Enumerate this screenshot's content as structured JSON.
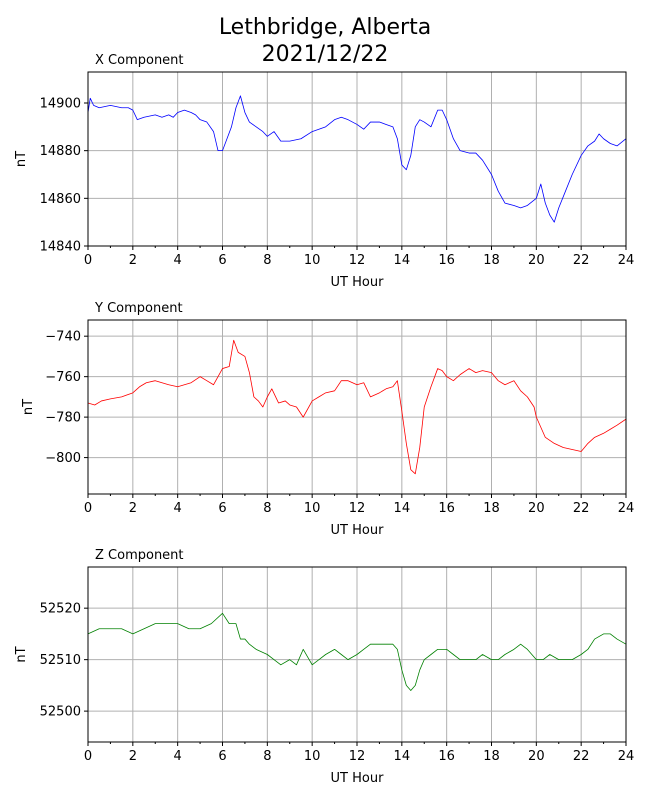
{
  "figure": {
    "title_line1": "Lethbridge, Alberta",
    "title_line2": "2021/12/22"
  },
  "chart_data": [
    {
      "type": "line",
      "panel_title": "X Component",
      "xlabel": "UT Hour",
      "ylabel": "nT",
      "xlim": [
        0,
        24
      ],
      "ylim": [
        14840,
        14913
      ],
      "xticks": [
        0,
        2,
        4,
        6,
        8,
        10,
        12,
        14,
        16,
        18,
        20,
        22,
        24
      ],
      "yticks": [
        14840,
        14860,
        14880,
        14900
      ],
      "grid": true,
      "color": "#0000ff",
      "series": [
        {
          "x": [
            0,
            0.1,
            0.25,
            0.5,
            1,
            1.5,
            1.8,
            2,
            2.2,
            2.5,
            3,
            3.3,
            3.6,
            3.8,
            4,
            4.3,
            4.6,
            4.8,
            5,
            5.3,
            5.6,
            5.8,
            6,
            6.2,
            6.4,
            6.6,
            6.8,
            7,
            7.2,
            7.5,
            7.8,
            8,
            8.3,
            8.6,
            9,
            9.5,
            10,
            10.3,
            10.6,
            11,
            11.3,
            11.6,
            12,
            12.3,
            12.6,
            13,
            13.3,
            13.6,
            13.8,
            14,
            14.2,
            14.4,
            14.6,
            14.8,
            15,
            15.3,
            15.6,
            15.8,
            16,
            16.3,
            16.6,
            17,
            17.3,
            17.6,
            18,
            18.3,
            18.6,
            19,
            19.3,
            19.6,
            20,
            20.2,
            20.4,
            20.6,
            20.8,
            21,
            21.3,
            21.6,
            22,
            22.3,
            22.6,
            22.8,
            23,
            23.3,
            23.6,
            24
          ],
          "y": [
            14896,
            14902,
            14899,
            14898,
            14899,
            14898,
            14898,
            14897,
            14893,
            14894,
            14895,
            14894,
            14895,
            14894,
            14896,
            14897,
            14896,
            14895,
            14893,
            14892,
            14888,
            14880,
            14880,
            14885,
            14890,
            14898,
            14903,
            14896,
            14892,
            14890,
            14888,
            14886,
            14888,
            14884,
            14884,
            14885,
            14888,
            14889,
            14890,
            14893,
            14894,
            14893,
            14891,
            14889,
            14892,
            14892,
            14891,
            14890,
            14885,
            14874,
            14872,
            14878,
            14890,
            14893,
            14892,
            14890,
            14897,
            14897,
            14893,
            14885,
            14880,
            14879,
            14879,
            14876,
            14870,
            14863,
            14858,
            14857,
            14856,
            14857,
            14860,
            14866,
            14858,
            14853,
            14850,
            14856,
            14863,
            14870,
            14878,
            14882,
            14884,
            14887,
            14885,
            14883,
            14882,
            14885
          ]
        }
      ]
    },
    {
      "type": "line",
      "panel_title": "Y Component",
      "xlabel": "UT Hour",
      "ylabel": "nT",
      "xlim": [
        0,
        24
      ],
      "ylim": [
        -818,
        -732
      ],
      "xticks": [
        0,
        2,
        4,
        6,
        8,
        10,
        12,
        14,
        16,
        18,
        20,
        22,
        24
      ],
      "yticks": [
        -800,
        -780,
        -760,
        -740
      ],
      "grid": true,
      "color": "#ff0000",
      "series": [
        {
          "x": [
            0,
            0.3,
            0.6,
            1,
            1.5,
            2,
            2.3,
            2.6,
            3,
            3.3,
            3.6,
            4,
            4.3,
            4.6,
            5,
            5.3,
            5.6,
            6,
            6.3,
            6.5,
            6.7,
            7,
            7.2,
            7.4,
            7.6,
            7.8,
            8,
            8.2,
            8.5,
            8.8,
            9,
            9.3,
            9.6,
            10,
            10.3,
            10.6,
            11,
            11.3,
            11.6,
            12,
            12.3,
            12.6,
            13,
            13.3,
            13.6,
            13.8,
            14,
            14.2,
            14.4,
            14.6,
            14.8,
            15,
            15.3,
            15.6,
            15.8,
            16,
            16.3,
            16.6,
            17,
            17.3,
            17.6,
            18,
            18.3,
            18.6,
            19,
            19.3,
            19.6,
            19.9,
            20,
            20.2,
            20.4,
            20.8,
            21.2,
            21.6,
            22,
            22.3,
            22.6,
            23,
            23.3,
            23.6,
            24
          ],
          "y": [
            -773,
            -774,
            -772,
            -771,
            -770,
            -768,
            -765,
            -763,
            -762,
            -763,
            -764,
            -765,
            -764,
            -763,
            -760,
            -762,
            -764,
            -756,
            -755,
            -742,
            -748,
            -750,
            -758,
            -770,
            -772,
            -775,
            -770,
            -766,
            -773,
            -772,
            -774,
            -775,
            -780,
            -772,
            -770,
            -768,
            -767,
            -762,
            -762,
            -764,
            -763,
            -770,
            -768,
            -766,
            -765,
            -762,
            -777,
            -793,
            -806,
            -808,
            -795,
            -775,
            -765,
            -756,
            -757,
            -760,
            -762,
            -759,
            -756,
            -758,
            -757,
            -758,
            -762,
            -764,
            -762,
            -767,
            -770,
            -775,
            -780,
            -785,
            -790,
            -793,
            -795,
            -796,
            -797,
            -793,
            -790,
            -788,
            -786,
            -784,
            -781
          ]
        }
      ]
    },
    {
      "type": "line",
      "panel_title": "Z Component",
      "xlabel": "UT Hour",
      "ylabel": "nT",
      "xlim": [
        0,
        24
      ],
      "ylim": [
        52494,
        52528
      ],
      "xticks": [
        0,
        2,
        4,
        6,
        8,
        10,
        12,
        14,
        16,
        18,
        20,
        22,
        24
      ],
      "yticks": [
        52500,
        52510,
        52520
      ],
      "grid": true,
      "color": "#008000",
      "series": [
        {
          "x": [
            0,
            0.5,
            1,
            1.5,
            2,
            2.5,
            3,
            3.5,
            4,
            4.5,
            5,
            5.5,
            6,
            6.3,
            6.6,
            6.8,
            7,
            7.2,
            7.5,
            8,
            8.3,
            8.6,
            9,
            9.3,
            9.6,
            10,
            10.3,
            10.6,
            11,
            11.3,
            11.6,
            12,
            12.3,
            12.6,
            13,
            13.3,
            13.6,
            13.8,
            14,
            14.2,
            14.4,
            14.6,
            14.8,
            15,
            15.3,
            15.6,
            16,
            16.3,
            16.6,
            17,
            17.3,
            17.6,
            18,
            18.3,
            18.6,
            19,
            19.3,
            19.6,
            20,
            20.3,
            20.6,
            21,
            21.3,
            21.6,
            22,
            22.3,
            22.6,
            23,
            23.3,
            23.6,
            24
          ],
          "y": [
            52515,
            52516,
            52516,
            52516,
            52515,
            52516,
            52517,
            52517,
            52517,
            52516,
            52516,
            52517,
            52519,
            52517,
            52517,
            52514,
            52514,
            52513,
            52512,
            52511,
            52510,
            52509,
            52510,
            52509,
            52512,
            52509,
            52510,
            52511,
            52512,
            52511,
            52510,
            52511,
            52512,
            52513,
            52513,
            52513,
            52513,
            52512,
            52508,
            52505,
            52504,
            52505,
            52508,
            52510,
            52511,
            52512,
            52512,
            52511,
            52510,
            52510,
            52510,
            52511,
            52510,
            52510,
            52511,
            52512,
            52513,
            52512,
            52510,
            52510,
            52511,
            52510,
            52510,
            52510,
            52511,
            52512,
            52514,
            52515,
            52515,
            52514,
            52513
          ]
        }
      ]
    }
  ]
}
